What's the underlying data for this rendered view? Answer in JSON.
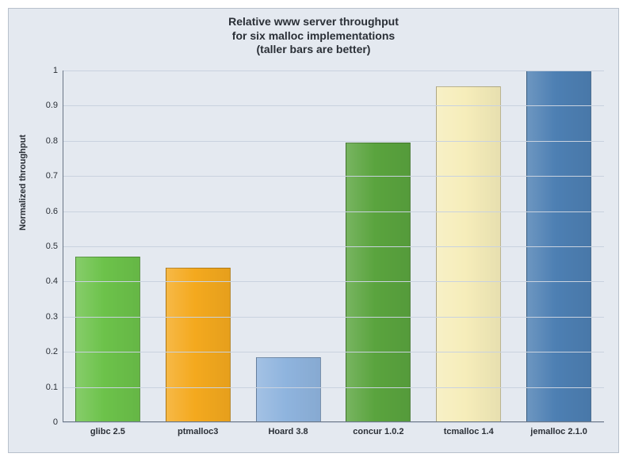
{
  "chart": {
    "type": "bar",
    "title_lines": [
      "Relative www server throughput",
      "for six malloc implementations",
      "(taller bars are better)"
    ],
    "ylabel": "Normalized throughput",
    "categories": [
      "glibc 2.5",
      "ptmalloc3",
      "Hoard 3.8",
      "concur 1.0.2",
      "tcmalloc 1.4",
      "jemalloc 2.1.0"
    ],
    "values": [
      0.47,
      0.44,
      0.185,
      0.795,
      0.955,
      1.0
    ],
    "bar_colors": [
      "#6cc24a",
      "#f4a91e",
      "#8fb4de",
      "#5aa43e",
      "#f6edba",
      "#4d7fb3"
    ],
    "ylim": [
      0,
      1
    ],
    "ytick_step": 0.1,
    "y_tick_labels": [
      "0",
      "0.1",
      "0.2",
      "0.3",
      "0.4",
      "0.5",
      "0.6",
      "0.7",
      "0.8",
      "0.9",
      "1"
    ],
    "background_color": "#e4e9f0",
    "grid_color": "#c9d2df",
    "axis_color": "#6a7686",
    "text_color": "#2a2f36",
    "title_fontsize": 14,
    "axis_label_fontsize": 11,
    "tick_fontsize": 11,
    "bar_width_pct": 72
  }
}
